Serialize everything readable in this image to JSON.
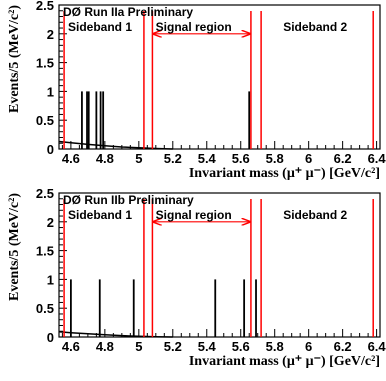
{
  "chart_data": [
    {
      "type": "bar",
      "title": "DØ Run IIa Preliminary",
      "xlabel": "Invariant mass (μ⁺ μ⁻) [GeV/c²]",
      "ylabel": "Events/5 (MeV/c²)",
      "xlim": [
        4.53,
        6.42
      ],
      "ylim": [
        0,
        2.5
      ],
      "xticks": [
        "4.6",
        "4.8",
        "5",
        "5.2",
        "5.4",
        "5.6",
        "5.8",
        "6",
        "6.2",
        "6.4"
      ],
      "yticks": [
        "0",
        "0.5",
        "1",
        "1.5",
        "2",
        "2.5"
      ],
      "events_x": [
        4.665,
        4.695,
        4.705,
        4.75,
        4.775,
        4.79,
        5.65
      ],
      "events_y": [
        1,
        1,
        1,
        1,
        1,
        1,
        1
      ],
      "background_curve": {
        "x": [
          4.53,
          4.6,
          4.7,
          4.8,
          4.9,
          5.0,
          5.1,
          5.2
        ],
        "y": [
          0.13,
          0.11,
          0.08,
          0.055,
          0.035,
          0.02,
          0.008,
          0.0
        ]
      },
      "region_boundaries": [
        4.56,
        5.03,
        5.08,
        5.66,
        5.72,
        6.38
      ],
      "regions": [
        {
          "label": "Sideband 1",
          "x": [
            4.56,
            5.03
          ]
        },
        {
          "label": "Signal region",
          "x": [
            5.08,
            5.66
          ]
        },
        {
          "label": "Sideband 2",
          "x": [
            5.72,
            6.38
          ]
        }
      ],
      "colors": {
        "boundary": "#ff0000",
        "events": "#000000"
      }
    },
    {
      "type": "bar",
      "title": "DØ Run IIb Preliminary",
      "xlabel": "Invariant mass (μ⁺ μ⁻) [GeV/c²]",
      "ylabel": "Events/5 (MeV/c²)",
      "xlim": [
        4.53,
        6.42
      ],
      "ylim": [
        0,
        2.5
      ],
      "xticks": [
        "4.6",
        "4.8",
        "5",
        "5.2",
        "5.4",
        "5.6",
        "5.8",
        "6",
        "6.2",
        "6.4"
      ],
      "yticks": [
        "0",
        "0.5",
        "1",
        "1.5",
        "2",
        "2.5"
      ],
      "events_x": [
        4.6,
        4.77,
        4.97,
        5.45,
        5.62,
        5.69
      ],
      "events_y": [
        1,
        1,
        1,
        1,
        1,
        1
      ],
      "background_curve": {
        "x": [
          4.53,
          4.6,
          4.7,
          4.8,
          4.9,
          5.0,
          5.1,
          5.2
        ],
        "y": [
          0.09,
          0.075,
          0.055,
          0.04,
          0.025,
          0.012,
          0.004,
          0.0
        ]
      },
      "region_boundaries": [
        4.56,
        5.03,
        5.08,
        5.66,
        5.72,
        6.38
      ],
      "regions": [
        {
          "label": "Sideband 1",
          "x": [
            4.56,
            5.03
          ]
        },
        {
          "label": "Signal region",
          "x": [
            5.08,
            5.66
          ]
        },
        {
          "label": "Sideband 2",
          "x": [
            5.72,
            6.38
          ]
        }
      ],
      "colors": {
        "boundary": "#ff0000",
        "events": "#000000"
      }
    }
  ]
}
